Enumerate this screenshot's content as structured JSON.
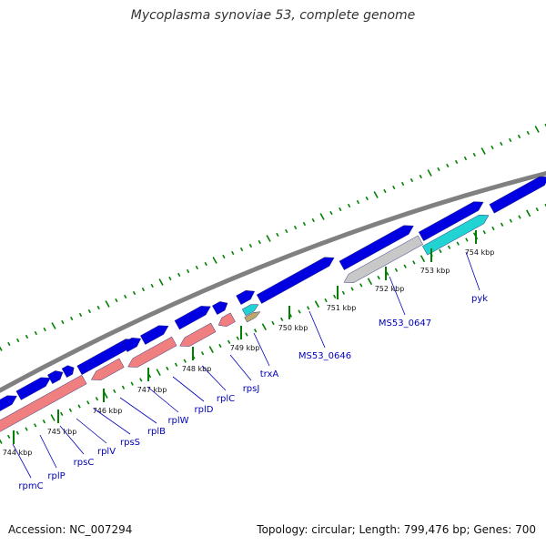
{
  "title": "Mycoplasma synoviae 53, complete genome",
  "footer": {
    "accession": "Accession: NC_007294",
    "summary": "Topology: circular; Length: 799,476 bp; Genes: 700"
  },
  "colors": {
    "backbone": "#808080",
    "forward_cds": "#0000e0",
    "reverse_rrna": "#f08080",
    "pseudo_grey": "#c8c8c8",
    "cyan": "#22d3d3",
    "tan": "#bda86a",
    "tick": "#008000",
    "label": "#0000bb"
  },
  "ticks": [
    {
      "kbp": 744,
      "label": "744 kbp"
    },
    {
      "kbp": 745,
      "label": "745 kbp"
    },
    {
      "kbp": 746,
      "label": "746 kbp"
    },
    {
      "kbp": 747,
      "label": "747 kbp"
    },
    {
      "kbp": 748,
      "label": "748 kbp"
    },
    {
      "kbp": 749,
      "label": "749 kbp"
    },
    {
      "kbp": 750,
      "label": "750 kbp"
    },
    {
      "kbp": 751,
      "label": "751 kbp"
    },
    {
      "kbp": 752,
      "label": "752 kbp"
    },
    {
      "kbp": 753,
      "label": "753 kbp"
    },
    {
      "kbp": 754,
      "label": "754 kbp"
    }
  ],
  "genes": [
    {
      "name": "rpmC"
    },
    {
      "name": "rplP"
    },
    {
      "name": "rpsC"
    },
    {
      "name": "rplV"
    },
    {
      "name": "rpsS"
    },
    {
      "name": "rplB"
    },
    {
      "name": "rplW"
    },
    {
      "name": "rplD"
    },
    {
      "name": "rplC"
    },
    {
      "name": "rpsJ"
    },
    {
      "name": "trxA"
    },
    {
      "name": "MS53_0646"
    },
    {
      "name": "MS53_0647"
    },
    {
      "name": "pyk"
    }
  ]
}
